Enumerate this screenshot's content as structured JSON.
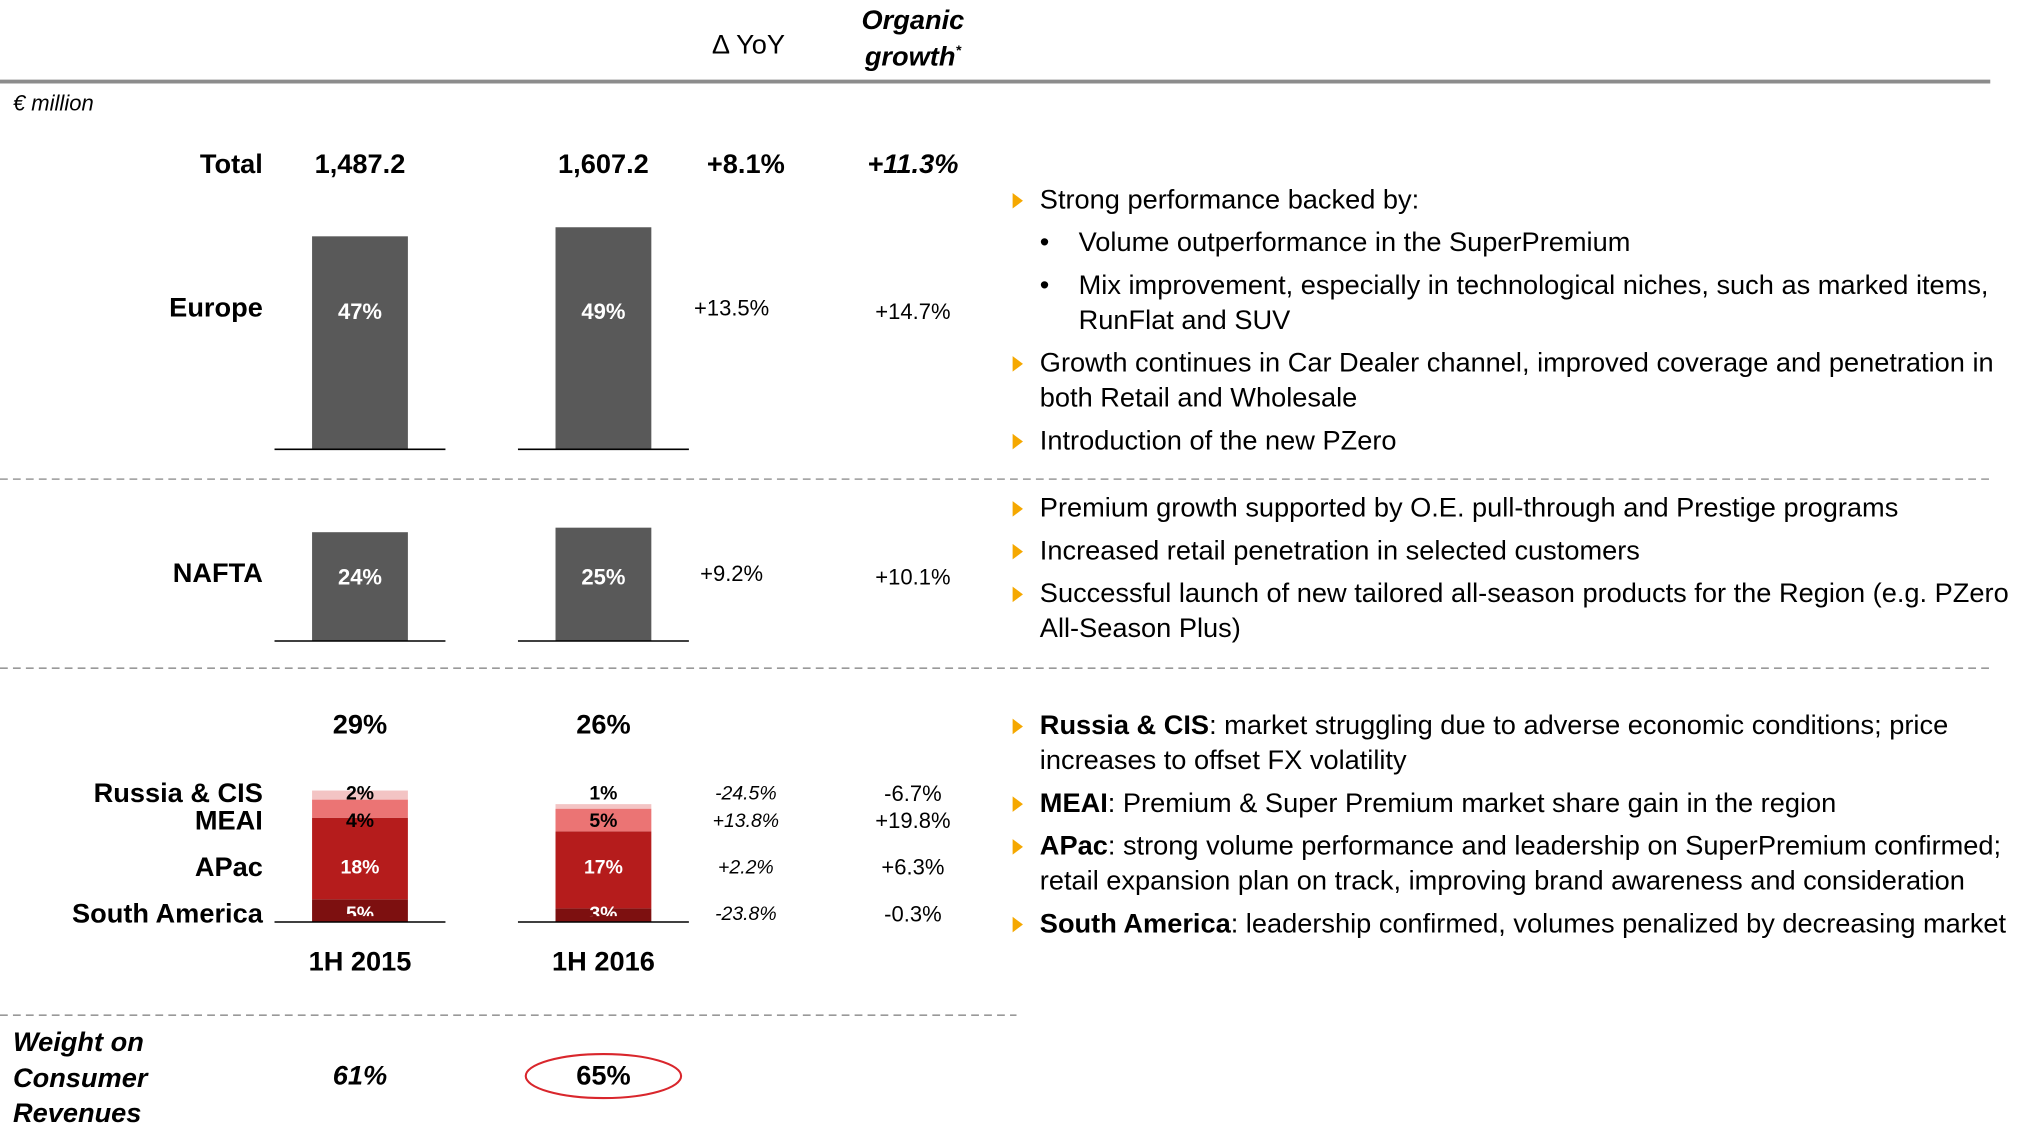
{
  "header": {
    "col_yoy": "Δ YoY",
    "col_organic": [
      "Organic",
      "growth"
    ],
    "footnote_mark": "*",
    "unit": "€ million"
  },
  "periods": [
    "1H 2015",
    "1H 2016"
  ],
  "total": {
    "label": "Total",
    "values": [
      "1,487.2",
      "1,607.2"
    ],
    "yoy": "+8.1%",
    "organic": "+11.3%"
  },
  "regions": [
    {
      "name": "Europe",
      "values": [
        47,
        49
      ],
      "value_labels": [
        "47%",
        "49%"
      ],
      "yoy": "+13.5%",
      "organic": "+14.7%",
      "color": "#595959"
    },
    {
      "name": "NAFTA",
      "values": [
        24,
        25
      ],
      "value_labels": [
        "24%",
        "25%"
      ],
      "yoy": "+9.2%",
      "organic": "+10.1%",
      "color": "#595959"
    }
  ],
  "rest_of_world": {
    "totals": [
      29,
      26
    ],
    "total_labels": [
      "29%",
      "26%"
    ],
    "segments": [
      {
        "name": "Russia & CIS",
        "values": [
          2,
          1
        ],
        "value_labels": [
          "2%",
          "1%"
        ],
        "yoy": "-24.5%",
        "organic": "-6.7%",
        "color": "#f3c4c4"
      },
      {
        "name": "MEAI",
        "values": [
          4,
          5
        ],
        "value_labels": [
          "4%",
          "5%"
        ],
        "yoy": "+13.8%",
        "organic": "+19.8%",
        "color": "#eb7474"
      },
      {
        "name": "APac",
        "values": [
          18,
          17
        ],
        "value_labels": [
          "18%",
          "17%"
        ],
        "yoy": "+2.2%",
        "organic": "+6.3%",
        "color": "#b51c1c"
      },
      {
        "name": "South America",
        "values": [
          5,
          3
        ],
        "value_labels": [
          "5%",
          "3%"
        ],
        "yoy": "-23.8%",
        "organic": "-0.3%",
        "color": "#7d1010"
      }
    ]
  },
  "weight": {
    "label": [
      "Weight on",
      "Consumer",
      "Revenues"
    ],
    "values": [
      "61%",
      "65%"
    ]
  },
  "commentary": [
    {
      "items": [
        {
          "text": "Strong performance backed by:",
          "sub": [
            "Volume outperformance in the SuperPremium",
            "Mix improvement, especially in technological niches, such as marked items, RunFlat and SUV"
          ]
        },
        {
          "text": "Growth continues in Car Dealer channel, improved coverage and penetration in both Retail and Wholesale"
        },
        {
          "text": "Introduction of the new PZero"
        }
      ]
    },
    {
      "items": [
        {
          "text": "Premium growth supported by O.E. pull-through and Prestige programs"
        },
        {
          "text": "Increased retail penetration in selected customers"
        },
        {
          "text": "Successful launch of new tailored all-season products for the Region (e.g. PZero All-Season Plus)"
        }
      ]
    },
    {
      "items": [
        {
          "bold": "Russia & CIS",
          "text": ": market struggling due to adverse economic conditions; price increases to offset FX volatility"
        },
        {
          "bold": "MEAI",
          "text": ": Premium & Super Premium market share gain in the region"
        },
        {
          "bold": "APac",
          "text": ": strong volume performance and leadership on SuperPremium confirmed; retail expansion plan on track, improving brand awareness and consideration"
        },
        {
          "bold": "South America",
          "text": ": leadership confirmed, volumes penalized by decreasing market"
        }
      ]
    }
  ]
}
